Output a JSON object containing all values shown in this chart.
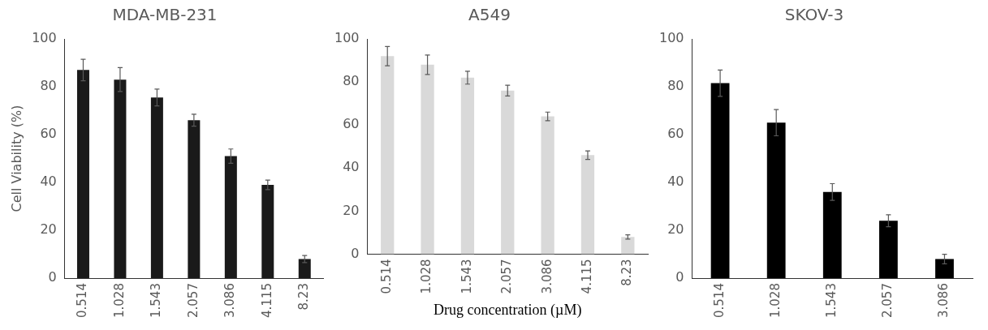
{
  "chart_data": [
    {
      "type": "bar",
      "title": "MDA-MB-231",
      "ylabel": "Cell Viability (%)",
      "categories": [
        "0.514",
        "1.028",
        "1.543",
        "2.057",
        "3.086",
        "4.115",
        "8.23"
      ],
      "values": [
        87,
        83,
        75.5,
        66,
        51,
        39,
        8
      ],
      "errors": [
        4.5,
        5,
        3.5,
        2.5,
        3,
        2,
        1.5
      ],
      "color": "#1a1a1a",
      "ylim": [
        0,
        100
      ],
      "yticks": [
        0,
        20,
        40,
        60,
        80,
        100
      ]
    },
    {
      "type": "bar",
      "title": "A549",
      "xlabel": "Drug concentration (µM)",
      "categories": [
        "0.514",
        "1.028",
        "1.543",
        "2.057",
        "3.086",
        "4.115",
        "8.23"
      ],
      "values": [
        92,
        88,
        82,
        76,
        64,
        46,
        8
      ],
      "errors": [
        4.5,
        4.5,
        3,
        2.5,
        2,
        2,
        1
      ],
      "color": "#d9d9d9",
      "ylim": [
        0,
        100
      ],
      "yticks": [
        0,
        20,
        40,
        60,
        80,
        100
      ]
    },
    {
      "type": "bar",
      "title": "SKOV-3",
      "categories": [
        "0.514",
        "1.028",
        "1.543",
        "2.057",
        "3.086"
      ],
      "values": [
        81.5,
        65,
        36,
        24,
        8
      ],
      "errors": [
        5.5,
        5.5,
        3.5,
        2.5,
        2
      ],
      "color": "#000000",
      "ylim": [
        0,
        100
      ],
      "yticks": [
        0,
        20,
        40,
        60,
        80,
        100
      ]
    }
  ]
}
